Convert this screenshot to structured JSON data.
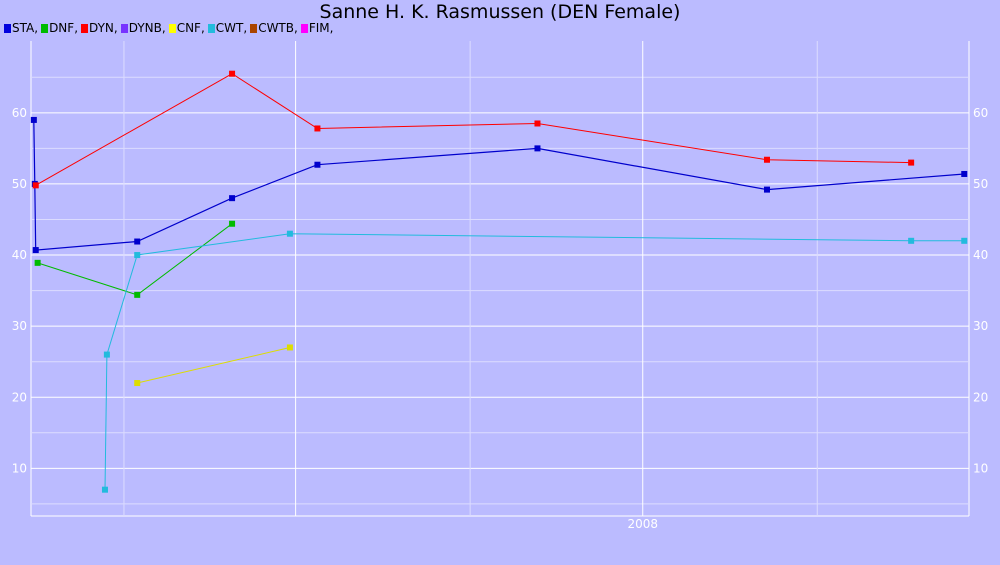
{
  "chart_data": {
    "type": "line",
    "title": "Sanne H. K. Rasmussen (DEN Female)",
    "xlabel": "",
    "ylabel": "",
    "x_tick_labels": [
      "2008"
    ],
    "y_ticks": [
      10,
      20,
      30,
      40,
      50,
      60
    ],
    "xlim": [
      "2006-09-25",
      "2009-06-10"
    ],
    "ylim": [
      3.3,
      70.1
    ],
    "grid": true,
    "legend_position": "top-left",
    "legend": [
      {
        "name": "STA",
        "color": "#0000dd"
      },
      {
        "name": "DNF",
        "color": "#00bb00"
      },
      {
        "name": "DYN",
        "color": "#ff0000"
      },
      {
        "name": "DYNB",
        "color": "#7733ff"
      },
      {
        "name": "CNF",
        "color": "#ffff00"
      },
      {
        "name": "CWT",
        "color": "#22bbdd"
      },
      {
        "name": "CWTB",
        "color": "#aa4400"
      },
      {
        "name": "FIM",
        "color": "#ff00ff"
      }
    ],
    "series": [
      {
        "name": "STA",
        "color": "#0000cc",
        "points": [
          {
            "x": "2006-09-28",
            "y": 59.0
          },
          {
            "x": "2006-09-29",
            "y": 50.0
          },
          {
            "x": "2006-09-30",
            "y": 40.7
          },
          {
            "x": "2007-01-15",
            "y": 41.9
          },
          {
            "x": "2007-04-25",
            "y": 48.0
          },
          {
            "x": "2007-07-24",
            "y": 52.7
          },
          {
            "x": "2008-03-12",
            "y": 55.0
          },
          {
            "x": "2008-11-09",
            "y": 49.2
          },
          {
            "x": "2009-06-05",
            "y": 51.4
          }
        ]
      },
      {
        "name": "DNF",
        "color": "#00bb00",
        "points": [
          {
            "x": "2006-10-02",
            "y": 38.9
          },
          {
            "x": "2007-01-15",
            "y": 34.4
          },
          {
            "x": "2007-04-25",
            "y": 44.4
          }
        ]
      },
      {
        "name": "DYN",
        "color": "#ff0000",
        "points": [
          {
            "x": "2006-09-30",
            "y": 49.8
          },
          {
            "x": "2007-04-25",
            "y": 65.5
          },
          {
            "x": "2007-07-24",
            "y": 57.8
          },
          {
            "x": "2008-03-12",
            "y": 58.5
          },
          {
            "x": "2008-11-09",
            "y": 53.4
          },
          {
            "x": "2009-04-10",
            "y": 53.0
          }
        ]
      },
      {
        "name": "CNF",
        "color": "#dddd00",
        "points": [
          {
            "x": "2007-01-15",
            "y": 22.0
          },
          {
            "x": "2007-06-25",
            "y": 27.0
          }
        ]
      },
      {
        "name": "CWT",
        "color": "#22bbdd",
        "points": [
          {
            "x": "2006-12-12",
            "y": 7.0
          },
          {
            "x": "2006-12-14",
            "y": 26.0
          },
          {
            "x": "2007-01-15",
            "y": 40.0
          },
          {
            "x": "2007-06-25",
            "y": 43.0
          },
          {
            "x": "2009-04-10",
            "y": 42.0
          },
          {
            "x": "2009-06-05",
            "y": 42.0
          }
        ]
      }
    ]
  }
}
